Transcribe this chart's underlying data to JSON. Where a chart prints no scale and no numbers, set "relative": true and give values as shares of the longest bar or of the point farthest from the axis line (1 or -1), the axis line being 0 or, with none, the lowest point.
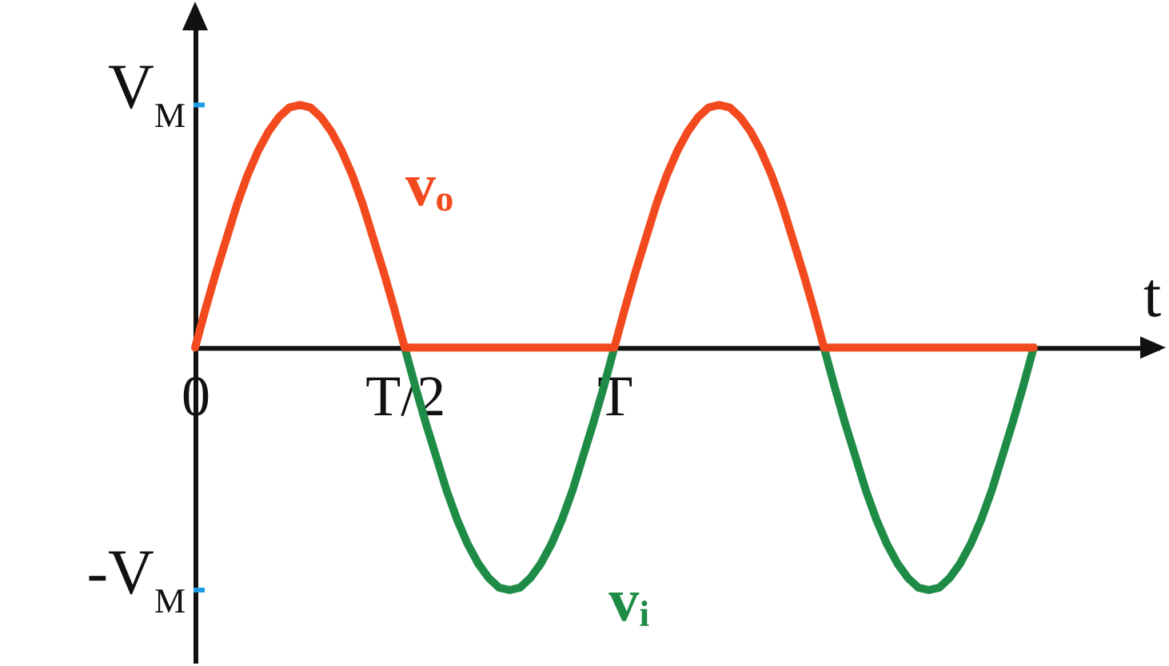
{
  "chart_data": {
    "type": "line",
    "xlabel": "t",
    "relative": true,
    "categories": [
      "0",
      null,
      null,
      null,
      null,
      null,
      null,
      null,
      null,
      null,
      null,
      null,
      null,
      null,
      null,
      null,
      null,
      null,
      null,
      null,
      "T/2",
      null,
      null,
      null,
      null,
      null,
      null,
      null,
      null,
      null,
      null,
      null,
      null,
      null,
      null,
      null,
      null,
      null,
      null,
      null,
      "T",
      null,
      null,
      null,
      null,
      null,
      null,
      null,
      null,
      null,
      null,
      null,
      null,
      null,
      null,
      null,
      null,
      null,
      null,
      null,
      null,
      null,
      null,
      null,
      null,
      null,
      null,
      null,
      null,
      null,
      null,
      null,
      null,
      null,
      null,
      null,
      null,
      null,
      null,
      null,
      null
    ],
    "series": [
      {
        "name": "vᵢ",
        "color": "#1e8c46",
        "values": [
          null,
          null,
          null,
          null,
          null,
          null,
          null,
          null,
          null,
          null,
          null,
          null,
          null,
          null,
          null,
          null,
          null,
          null,
          null,
          null,
          0,
          -0.16,
          -0.31,
          -0.45,
          -0.59,
          -0.71,
          -0.81,
          -0.89,
          -0.95,
          -0.99,
          -1,
          -0.99,
          -0.95,
          -0.89,
          -0.81,
          -0.71,
          -0.59,
          -0.45,
          -0.31,
          -0.16,
          0,
          null,
          null,
          null,
          null,
          null,
          null,
          null,
          null,
          null,
          null,
          null,
          null,
          null,
          null,
          null,
          null,
          null,
          null,
          null,
          0,
          -0.16,
          -0.31,
          -0.45,
          -0.59,
          -0.71,
          -0.81,
          -0.89,
          -0.95,
          -0.99,
          -1,
          -0.99,
          -0.95,
          -0.89,
          -0.81,
          -0.71,
          -0.59,
          -0.45,
          -0.31,
          -0.16,
          0
        ]
      },
      {
        "name": "vₒ",
        "color": "#f24a1e",
        "values": [
          0,
          0.16,
          0.31,
          0.45,
          0.59,
          0.71,
          0.81,
          0.89,
          0.95,
          0.99,
          1,
          0.99,
          0.95,
          0.89,
          0.81,
          0.71,
          0.59,
          0.45,
          0.31,
          0.16,
          0,
          0,
          0,
          0,
          0,
          0,
          0,
          0,
          0,
          0,
          0,
          0,
          0,
          0,
          0,
          0,
          0,
          0,
          0,
          0,
          0,
          0.16,
          0.31,
          0.45,
          0.59,
          0.71,
          0.81,
          0.89,
          0.95,
          0.99,
          1,
          0.99,
          0.95,
          0.89,
          0.81,
          0.71,
          0.59,
          0.45,
          0.31,
          0.16,
          0,
          0,
          0,
          0,
          0,
          0,
          0,
          0,
          0,
          0,
          0,
          0,
          0,
          0,
          0,
          0,
          0,
          0,
          0,
          0,
          0
        ]
      }
    ],
    "annotations": [
      "V$_{M}$",
      "-V$_{M}$"
    ],
    "grid": false,
    "marker": "none",
    "line_style": "solid"
  }
}
